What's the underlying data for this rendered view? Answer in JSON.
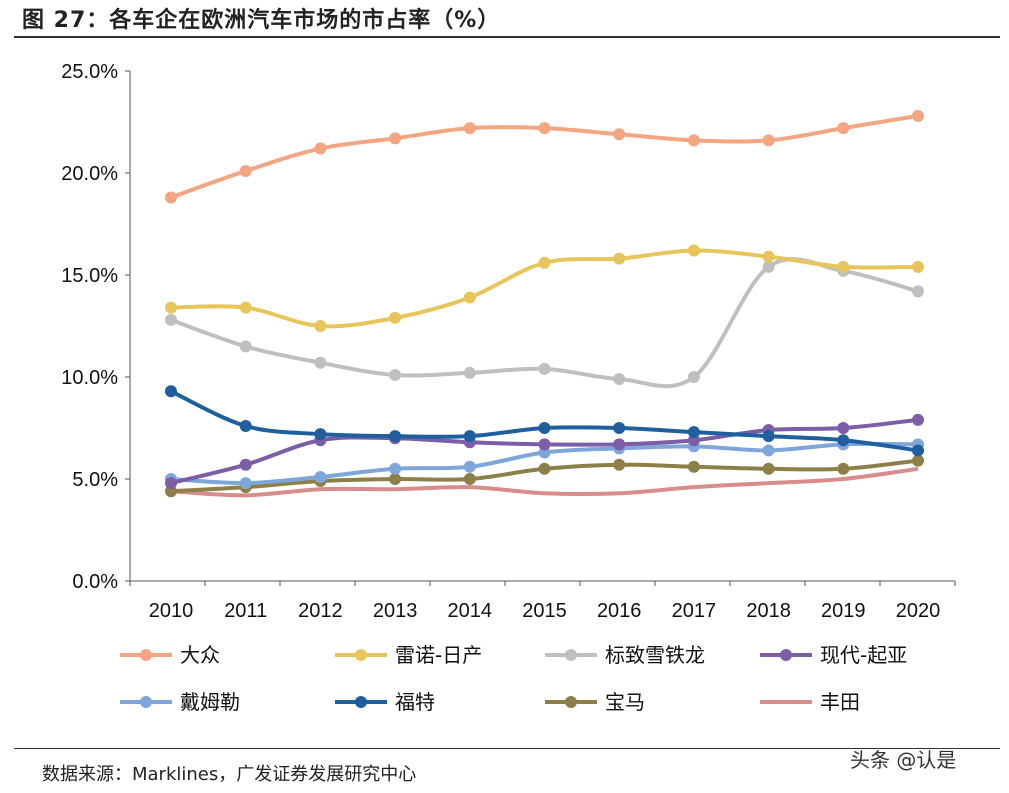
{
  "title": "图 27：各车企在欧洲汽车市场的市占率（%）",
  "source": "数据来源：Marklines，广发证券发展研究中心",
  "watermark": "头条 @认是",
  "chart_data": {
    "type": "line",
    "title": "",
    "xlabel": "",
    "ylabel": "",
    "x": [
      "2010",
      "2011",
      "2012",
      "2013",
      "2014",
      "2015",
      "2016",
      "2017",
      "2018",
      "2019",
      "2020"
    ],
    "ylim": [
      0,
      25
    ],
    "yticks": [
      "0.0%",
      "5.0%",
      "10.0%",
      "15.0%",
      "20.0%",
      "25.0%"
    ],
    "ytick_values": [
      0,
      5,
      10,
      15,
      20,
      25
    ],
    "grid": false,
    "legend_placement": "bottom",
    "smooth": true,
    "series": [
      {
        "name": "大众",
        "color": "#F4A582",
        "markers": true,
        "values": [
          18.8,
          20.1,
          21.2,
          21.7,
          22.2,
          22.2,
          21.9,
          21.6,
          21.6,
          22.2,
          22.8
        ]
      },
      {
        "name": "雷诺-日产",
        "color": "#E8C55A",
        "markers": true,
        "values": [
          13.4,
          13.4,
          12.5,
          12.9,
          13.9,
          15.6,
          15.8,
          16.2,
          15.9,
          15.4,
          15.4
        ]
      },
      {
        "name": "标致雪铁龙",
        "color": "#BFBFBF",
        "markers": true,
        "values": [
          12.8,
          11.5,
          10.7,
          10.1,
          10.2,
          10.4,
          9.9,
          10.0,
          15.4,
          15.2,
          14.2
        ]
      },
      {
        "name": "现代-起亚",
        "color": "#7B5EA7",
        "markers": true,
        "values": [
          4.8,
          5.7,
          6.9,
          7.0,
          6.8,
          6.7,
          6.7,
          6.9,
          7.4,
          7.5,
          7.9
        ]
      },
      {
        "name": "戴姆勒",
        "color": "#7EA6D9",
        "markers": true,
        "values": [
          5.0,
          4.8,
          5.1,
          5.5,
          5.6,
          6.3,
          6.5,
          6.6,
          6.4,
          6.7,
          6.7
        ]
      },
      {
        "name": "福特",
        "color": "#1F5F9E",
        "markers": true,
        "values": [
          9.3,
          7.6,
          7.2,
          7.1,
          7.1,
          7.5,
          7.5,
          7.3,
          7.1,
          6.9,
          6.4
        ]
      },
      {
        "name": "宝马",
        "color": "#8C8048",
        "markers": true,
        "values": [
          4.4,
          4.6,
          4.9,
          5.0,
          5.0,
          5.5,
          5.7,
          5.6,
          5.5,
          5.5,
          5.9
        ]
      },
      {
        "name": "丰田",
        "color": "#D98C8C",
        "markers": false,
        "values": [
          4.4,
          4.2,
          4.5,
          4.5,
          4.6,
          4.3,
          4.3,
          4.6,
          4.8,
          5.0,
          5.5
        ]
      }
    ]
  }
}
